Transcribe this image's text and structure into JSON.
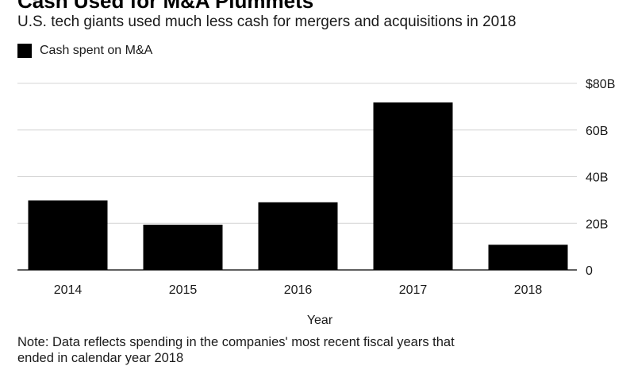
{
  "title": "Cash Used for M&A Plummets",
  "subtitle": "U.S. tech giants used much less cash for mergers and acquisitions in 2018",
  "legend": {
    "label": "Cash spent on M&A",
    "color": "#000000"
  },
  "note_line1": "Note: Data reflects spending in the companies' most recent fiscal years that",
  "note_line2": "ended in calendar year 2018",
  "chart_data": {
    "type": "bar",
    "categories": [
      "2014",
      "2015",
      "2016",
      "2017",
      "2018"
    ],
    "series": [
      {
        "name": "Cash spent on M&A",
        "values": [
          29.8,
          19.4,
          29.0,
          71.8,
          10.8
        ],
        "color": "#000000"
      }
    ],
    "xlabel": "Year",
    "ylabel": "",
    "ylim": [
      0,
      80
    ],
    "yticks": [
      0,
      20,
      40,
      60,
      80
    ],
    "ytick_labels": [
      "0",
      "20B",
      "40B",
      "60B",
      "$80B"
    ],
    "y_axis_side": "right",
    "grid": true
  }
}
